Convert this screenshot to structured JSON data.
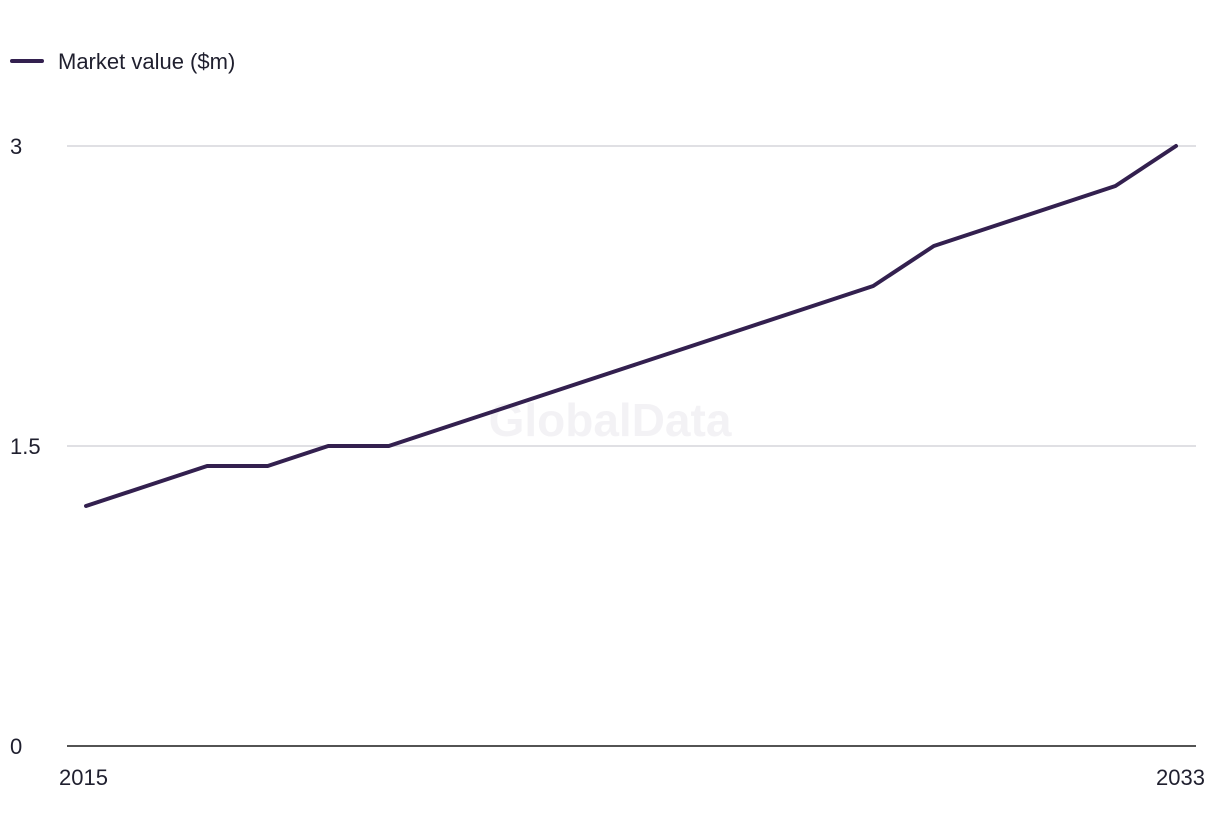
{
  "watermark": "GlobalData",
  "chart_data": {
    "type": "line",
    "title": "",
    "xlabel": "",
    "ylabel": "",
    "x": [
      2015,
      2016,
      2017,
      2018,
      2019,
      2020,
      2021,
      2022,
      2023,
      2024,
      2025,
      2026,
      2027,
      2028,
      2029,
      2030,
      2031,
      2032,
      2033
    ],
    "x_tick_labels": [
      "2015",
      "2033"
    ],
    "y_tick_labels": [
      "0",
      "1.5",
      "3"
    ],
    "yticks": [
      0,
      1.5,
      3
    ],
    "ylim": [
      0,
      3
    ],
    "grid": true,
    "legend_position": "top-left",
    "series": [
      {
        "name": "Market value ($m)",
        "color": "#33204f",
        "values": [
          1.2,
          1.3,
          1.4,
          1.4,
          1.5,
          1.5,
          1.6,
          1.7,
          1.8,
          1.9,
          2.0,
          2.1,
          2.2,
          2.3,
          2.5,
          2.6,
          2.7,
          2.8,
          3.0
        ]
      }
    ]
  }
}
